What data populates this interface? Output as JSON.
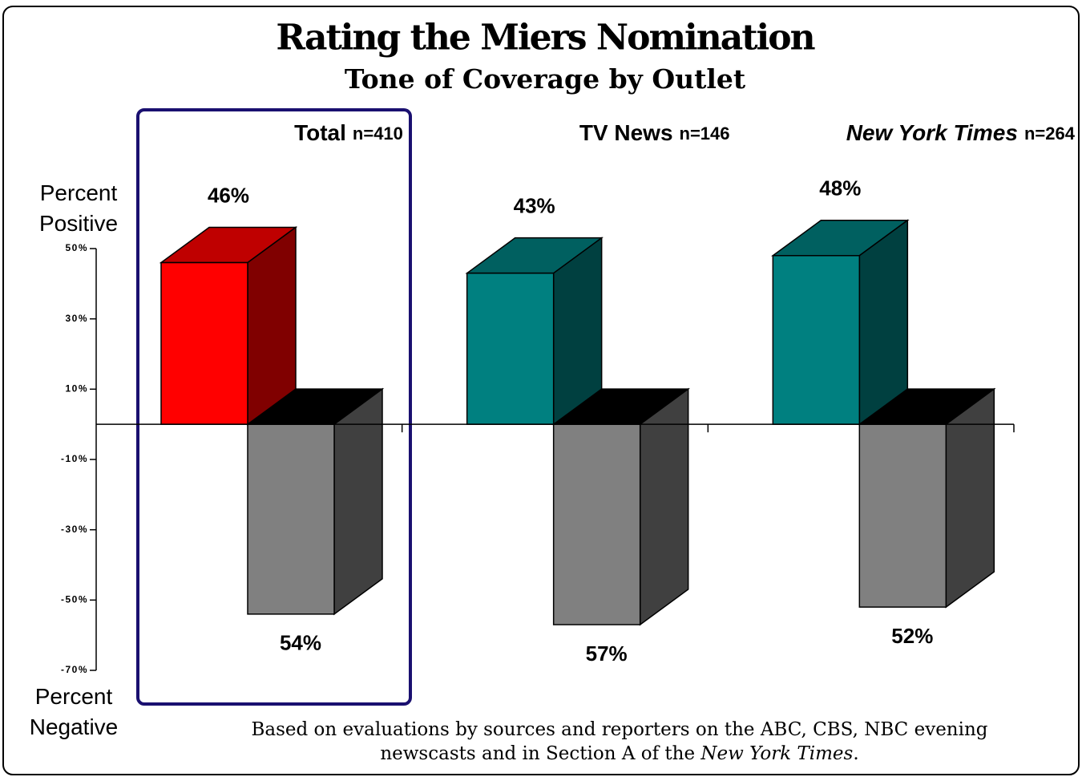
{
  "chart_data": {
    "type": "bar3d",
    "title": "Rating the Miers Nomination",
    "subtitle": "Tone of Coverage by Outlet",
    "categories": [
      "Total",
      "TV News",
      "New York Times"
    ],
    "sample_sizes": [
      "n=410",
      "n=146",
      "n=264"
    ],
    "series": [
      {
        "name": "Percent Positive",
        "colors": [
          "#ff0000",
          "#008080",
          "#008080"
        ],
        "values": [
          46,
          43,
          48
        ],
        "value_labels": [
          "46%",
          "43%",
          "48%"
        ]
      },
      {
        "name": "Percent Negative",
        "color": "#808080",
        "values": [
          -54,
          -57,
          -52
        ],
        "value_labels": [
          "54%",
          "57%",
          "52%"
        ]
      }
    ],
    "ylim": [
      -70,
      50
    ],
    "yticks": [
      {
        "value": 50,
        "label": "50%"
      },
      {
        "value": 30,
        "label": "30%"
      },
      {
        "value": 10,
        "label": "10%"
      },
      {
        "value": -10,
        "label": "-10%"
      },
      {
        "value": -30,
        "label": "-30%"
      },
      {
        "value": -50,
        "label": "-50%"
      },
      {
        "value": -70,
        "label": "-70%"
      }
    ],
    "note": {
      "line1": "Based on evaluations by sources and reporters on the ABC, CBS, NBC evening",
      "line2": "newscasts and in Section A of the",
      "line2_italic": "New York Times",
      "line2_end": "."
    }
  }
}
